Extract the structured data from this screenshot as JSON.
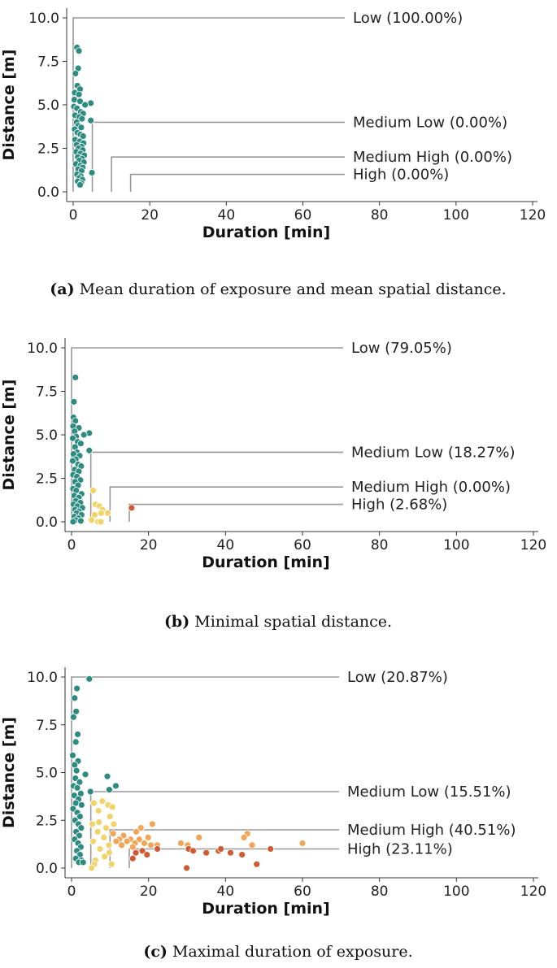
{
  "chart_data": [
    {
      "type": "scatter",
      "xlabel": "Duration [min]",
      "ylabel": "Distance [m]",
      "xlim": [
        0,
        120
      ],
      "ylim": [
        0,
        10
      ],
      "x_ticks": [
        "0",
        "20",
        "40",
        "60",
        "80",
        "100",
        "120"
      ],
      "y_ticks": [
        "0.0",
        "2.5",
        "5.0",
        "7.5",
        "10.0"
      ],
      "caption_label": "(a)",
      "caption_text": "Mean duration of exposure and mean spatial distance.",
      "thresholds": [
        {
          "name": "Low",
          "label": "Low (100.00%)",
          "x": 0,
          "y": 10
        },
        {
          "name": "Medium Low",
          "label": "Medium Low (0.00%)",
          "x": 5,
          "y": 4
        },
        {
          "name": "Medium High",
          "label": "Medium High (0.00%)",
          "x": 10,
          "y": 2
        },
        {
          "name": "High",
          "label": "High (0.00%)",
          "x": 15,
          "y": 1
        }
      ],
      "series": [
        {
          "category": "Low",
          "color": "#2e8b7f",
          "points": [
            [
              1.0,
              8.3
            ],
            [
              1.5,
              8.1
            ],
            [
              1.3,
              7.1
            ],
            [
              0.6,
              6.8
            ],
            [
              1.1,
              6.1
            ],
            [
              1.8,
              5.9
            ],
            [
              0.4,
              5.7
            ],
            [
              1.5,
              5.6
            ],
            [
              0.3,
              5.3
            ],
            [
              1.8,
              5.2
            ],
            [
              4.6,
              5.1
            ],
            [
              3.1,
              5.0
            ],
            [
              0.2,
              4.9
            ],
            [
              1.0,
              4.8
            ],
            [
              2.0,
              4.6
            ],
            [
              2.6,
              4.5
            ],
            [
              0.5,
              4.4
            ],
            [
              1.6,
              4.3
            ],
            [
              2.3,
              4.2
            ],
            [
              4.6,
              4.1
            ],
            [
              0.9,
              4.0
            ],
            [
              1.3,
              3.8
            ],
            [
              2.1,
              3.7
            ],
            [
              0.4,
              3.6
            ],
            [
              1.1,
              3.4
            ],
            [
              1.9,
              3.3
            ],
            [
              2.6,
              3.2
            ],
            [
              0.5,
              3.0
            ],
            [
              1.7,
              2.9
            ],
            [
              2.7,
              2.8
            ],
            [
              0.9,
              2.7
            ],
            [
              2.2,
              2.6
            ],
            [
              1.4,
              2.5
            ],
            [
              2.5,
              2.4
            ],
            [
              0.8,
              2.3
            ],
            [
              1.9,
              2.2
            ],
            [
              2.9,
              2.1
            ],
            [
              1.2,
              2.0
            ],
            [
              2.3,
              1.9
            ],
            [
              1.6,
              1.8
            ],
            [
              2.8,
              1.7
            ],
            [
              0.7,
              1.6
            ],
            [
              1.9,
              1.5
            ],
            [
              2.5,
              1.4
            ],
            [
              1.3,
              1.3
            ],
            [
              2.2,
              1.2
            ],
            [
              4.9,
              1.1
            ],
            [
              1.0,
              1.0
            ],
            [
              2.0,
              0.9
            ],
            [
              1.6,
              0.8
            ],
            [
              2.4,
              0.7
            ],
            [
              1.2,
              0.6
            ],
            [
              2.1,
              0.5
            ],
            [
              1.8,
              0.4
            ]
          ]
        }
      ]
    },
    {
      "type": "scatter",
      "xlabel": "Duration [min]",
      "ylabel": "Distance [m]",
      "xlim": [
        0,
        120
      ],
      "ylim": [
        0,
        10
      ],
      "x_ticks": [
        "0",
        "20",
        "40",
        "60",
        "80",
        "100",
        "120"
      ],
      "y_ticks": [
        "0.0",
        "2.5",
        "5.0",
        "7.5",
        "10.0"
      ],
      "caption_label": "(b)",
      "caption_text": "Minimal spatial distance.",
      "thresholds": [
        {
          "name": "Low",
          "label": "Low (79.05%)",
          "x": 0,
          "y": 10
        },
        {
          "name": "Medium Low",
          "label": "Medium Low (18.27%)",
          "x": 5,
          "y": 4
        },
        {
          "name": "Medium High",
          "label": "Medium High (0.00%)",
          "x": 10,
          "y": 2
        },
        {
          "name": "High",
          "label": "High (2.68%)",
          "x": 15,
          "y": 1
        }
      ],
      "series": [
        {
          "category": "Low",
          "color": "#2e8b7f",
          "points": [
            [
              1.0,
              8.3
            ],
            [
              0.6,
              6.9
            ],
            [
              0.5,
              6.0
            ],
            [
              1.0,
              5.8
            ],
            [
              0.4,
              5.5
            ],
            [
              1.9,
              5.4
            ],
            [
              0.8,
              5.2
            ],
            [
              4.6,
              5.1
            ],
            [
              3.2,
              5.0
            ],
            [
              1.2,
              4.9
            ],
            [
              0.3,
              4.8
            ],
            [
              1.6,
              4.6
            ],
            [
              2.4,
              4.5
            ],
            [
              0.9,
              4.3
            ],
            [
              4.6,
              4.1
            ],
            [
              1.4,
              4.0
            ],
            [
              0.5,
              3.9
            ],
            [
              2.1,
              3.8
            ],
            [
              1.1,
              3.6
            ],
            [
              0.3,
              3.5
            ],
            [
              1.7,
              3.3
            ],
            [
              2.5,
              3.2
            ],
            [
              0.8,
              3.0
            ],
            [
              1.9,
              2.9
            ],
            [
              0.4,
              2.7
            ],
            [
              1.4,
              2.6
            ],
            [
              2.3,
              2.4
            ],
            [
              0.9,
              2.3
            ],
            [
              1.7,
              2.1
            ],
            [
              0.4,
              1.9
            ],
            [
              1.2,
              1.8
            ],
            [
              2.6,
              1.6
            ],
            [
              0.7,
              1.5
            ],
            [
              1.9,
              1.4
            ],
            [
              1.1,
              1.2
            ],
            [
              2.3,
              1.1
            ],
            [
              0.5,
              1.0
            ],
            [
              1.5,
              0.9
            ],
            [
              2.8,
              0.8
            ],
            [
              0.9,
              0.7
            ],
            [
              1.9,
              0.6
            ],
            [
              1.3,
              0.5
            ],
            [
              2.6,
              0.4
            ],
            [
              0.7,
              0.3
            ],
            [
              1.8,
              0.2
            ],
            [
              1.1,
              0.1
            ],
            [
              2.4,
              0.05
            ],
            [
              0.4,
              0.0
            ]
          ]
        },
        {
          "category": "Medium Low",
          "color": "#f0d46a",
          "points": [
            [
              5.6,
              1.8
            ],
            [
              6.2,
              1.0
            ],
            [
              7.2,
              0.9
            ],
            [
              8.0,
              0.7
            ],
            [
              7.7,
              0.5
            ],
            [
              6.0,
              0.4
            ],
            [
              9.4,
              0.5
            ],
            [
              5.2,
              0.1
            ],
            [
              6.9,
              0.0
            ],
            [
              7.6,
              0.0
            ]
          ]
        },
        {
          "category": "High",
          "color": "#d0583a",
          "points": [
            [
              15.6,
              0.8
            ]
          ]
        }
      ]
    },
    {
      "type": "scatter",
      "xlabel": "Duration [min]",
      "ylabel": "Distance [m]",
      "xlim": [
        0,
        120
      ],
      "ylim": [
        0,
        10
      ],
      "x_ticks": [
        "0",
        "20",
        "40",
        "60",
        "80",
        "100",
        "120"
      ],
      "y_ticks": [
        "0.0",
        "2.5",
        "5.0",
        "7.5",
        "10.0"
      ],
      "caption_label": "(c)",
      "caption_text": "Maximal duration of exposure.",
      "thresholds": [
        {
          "name": "Low",
          "label": "Low (20.87%)",
          "x": 0,
          "y": 10
        },
        {
          "name": "Medium Low",
          "label": "Medium Low (15.51%)",
          "x": 5,
          "y": 4
        },
        {
          "name": "Medium High",
          "label": "Medium High (40.51%)",
          "x": 10,
          "y": 2
        },
        {
          "name": "High",
          "label": "High (23.11%)",
          "x": 15,
          "y": 1
        }
      ],
      "series": [
        {
          "category": "Low",
          "color": "#2e8b7f",
          "points": [
            [
              4.6,
              9.9
            ],
            [
              1.4,
              9.4
            ],
            [
              0.8,
              8.9
            ],
            [
              1.2,
              8.2
            ],
            [
              0.5,
              7.9
            ],
            [
              1.6,
              7.0
            ],
            [
              1.1,
              6.6
            ],
            [
              0.3,
              5.9
            ],
            [
              1.7,
              5.6
            ],
            [
              0.8,
              5.4
            ],
            [
              1.3,
              5.1
            ],
            [
              3.6,
              4.9
            ],
            [
              9.3,
              4.8
            ],
            [
              1.0,
              4.7
            ],
            [
              2.1,
              4.5
            ],
            [
              0.5,
              4.3
            ],
            [
              11.5,
              4.3
            ],
            [
              1.5,
              4.2
            ],
            [
              9.8,
              4.1
            ],
            [
              4.9,
              4.0
            ],
            [
              2.4,
              3.9
            ],
            [
              0.7,
              3.8
            ],
            [
              1.8,
              3.6
            ],
            [
              1.1,
              3.4
            ],
            [
              2.6,
              3.3
            ],
            [
              0.4,
              3.1
            ],
            [
              1.5,
              2.9
            ],
            [
              2.2,
              2.7
            ],
            [
              0.9,
              2.5
            ],
            [
              1.8,
              2.3
            ],
            [
              2.5,
              2.1
            ],
            [
              1.2,
              1.9
            ],
            [
              2.0,
              1.7
            ],
            [
              0.8,
              1.5
            ],
            [
              1.7,
              1.3
            ],
            [
              2.4,
              1.1
            ],
            [
              1.4,
              0.9
            ],
            [
              2.2,
              0.7
            ],
            [
              1.1,
              0.5
            ],
            [
              2.6,
              0.4
            ],
            [
              1.9,
              0.3
            ],
            [
              3.0,
              0.3
            ]
          ]
        },
        {
          "category": "Medium Low",
          "color": "#f0d46a",
          "points": [
            [
              5.8,
              3.4
            ],
            [
              8.0,
              3.5
            ],
            [
              9.5,
              3.3
            ],
            [
              10.6,
              3.2
            ],
            [
              7.0,
              3.0
            ],
            [
              10.0,
              2.7
            ],
            [
              7.1,
              2.4
            ],
            [
              5.4,
              2.3
            ],
            [
              11.0,
              2.3
            ],
            [
              9.0,
              2.1
            ],
            [
              6.8,
              1.9
            ],
            [
              8.4,
              1.6
            ],
            [
              5.6,
              1.4
            ],
            [
              9.7,
              1.2
            ],
            [
              7.4,
              1.0
            ],
            [
              9.8,
              0.8
            ],
            [
              8.6,
              0.6
            ],
            [
              6.2,
              0.4
            ],
            [
              5.9,
              0.2
            ],
            [
              10.4,
              0.2
            ],
            [
              5.2,
              0.0
            ]
          ]
        },
        {
          "category": "Medium High",
          "color": "#f2a556",
          "points": [
            [
              21.0,
              2.3
            ],
            [
              18.0,
              2.1
            ],
            [
              16.8,
              1.9
            ],
            [
              10.8,
              1.8
            ],
            [
              13.5,
              1.7
            ],
            [
              19.9,
              1.6
            ],
            [
              12.4,
              1.5
            ],
            [
              15.3,
              1.5
            ],
            [
              17.6,
              1.5
            ],
            [
              11.6,
              1.4
            ],
            [
              14.4,
              1.4
            ],
            [
              16.5,
              1.3
            ],
            [
              18.9,
              1.3
            ],
            [
              20.6,
              1.2
            ],
            [
              22.3,
              1.2
            ],
            [
              13.0,
              1.2
            ],
            [
              15.9,
              1.1
            ],
            [
              33.1,
              1.6
            ],
            [
              45.7,
              1.8
            ],
            [
              44.8,
              1.6
            ],
            [
              30.2,
              1.2
            ],
            [
              28.4,
              1.3
            ],
            [
              46.9,
              1.2
            ],
            [
              60.0,
              1.3
            ]
          ]
        },
        {
          "category": "High",
          "color": "#cf5a34",
          "points": [
            [
              22.3,
              1.0
            ],
            [
              18.4,
              0.9
            ],
            [
              16.7,
              0.8
            ],
            [
              19.6,
              0.7
            ],
            [
              15.9,
              0.5
            ],
            [
              30.4,
              1.0
            ],
            [
              31.6,
              0.9
            ],
            [
              38.2,
              0.9
            ],
            [
              38.8,
              1.0
            ],
            [
              35.0,
              0.8
            ],
            [
              51.7,
              1.0
            ],
            [
              41.3,
              0.8
            ],
            [
              29.9,
              0.0
            ],
            [
              48.1,
              0.2
            ],
            [
              44.3,
              0.7
            ]
          ]
        }
      ]
    }
  ]
}
